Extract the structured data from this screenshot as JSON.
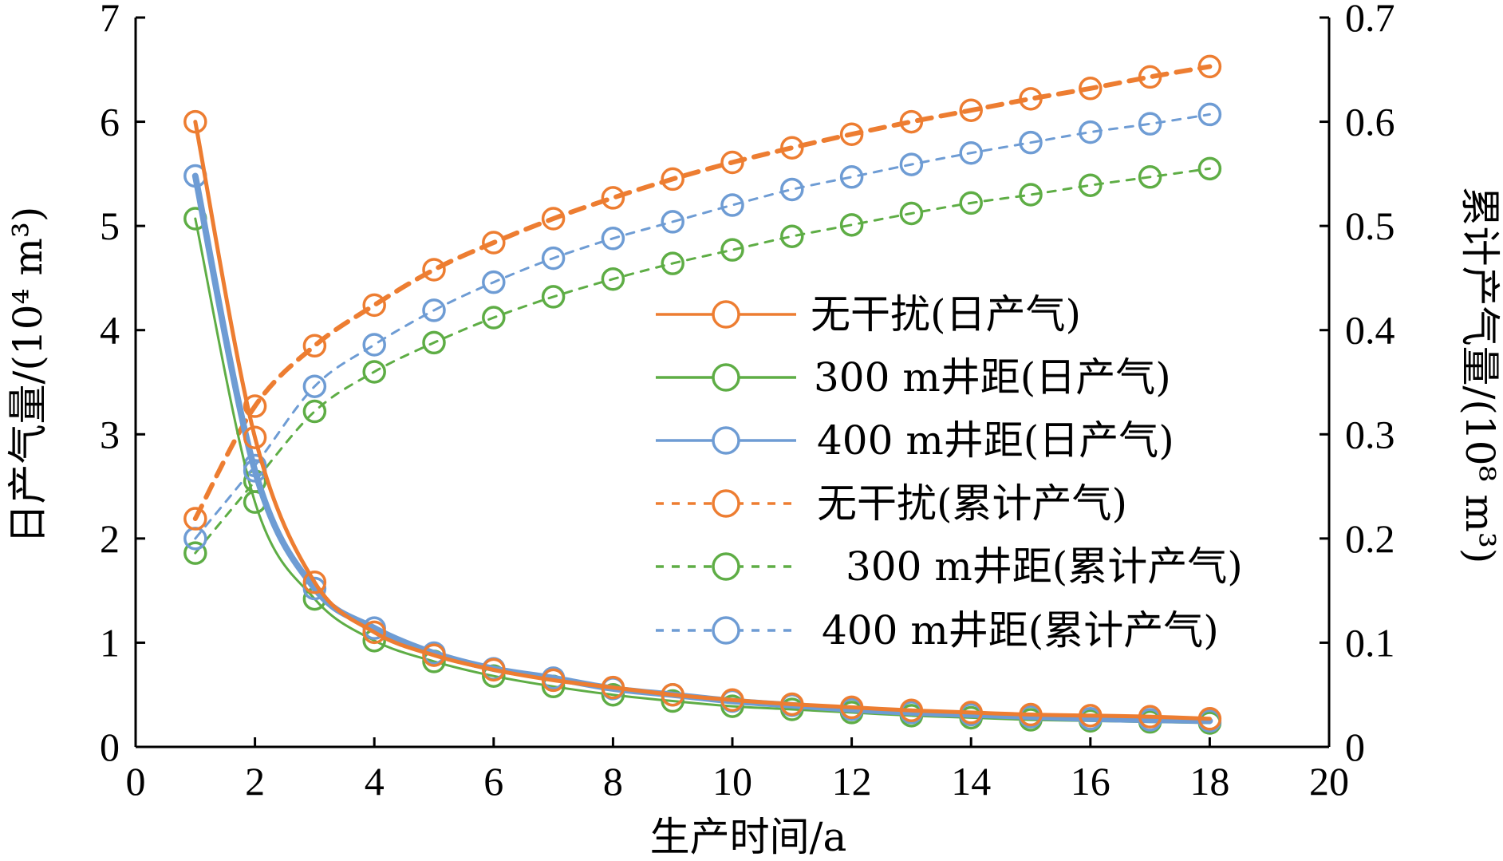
{
  "chart_data": {
    "type": "line",
    "xlabel": "生产时间/a",
    "ylabel_left": "日产气量/(10⁴ m³)",
    "ylabel_right": "累计产气量/(10⁸ m³)",
    "xlim": [
      0,
      20
    ],
    "ylim_left": [
      0,
      7
    ],
    "ylim_right": [
      0,
      0.7
    ],
    "x_ticks": [
      "0",
      "2",
      "4",
      "6",
      "8",
      "10",
      "12",
      "14",
      "16",
      "18",
      "20"
    ],
    "y_left_ticks": [
      "0",
      "1",
      "2",
      "3",
      "4",
      "5",
      "6",
      "7"
    ],
    "y_right_ticks": [
      "0",
      "0.1",
      "0.2",
      "0.3",
      "0.4",
      "0.5",
      "0.6",
      "0.7"
    ],
    "grid": false,
    "legend_position": "center-right",
    "x": [
      1,
      2,
      3,
      4,
      5,
      6,
      7,
      8,
      9,
      10,
      11,
      12,
      13,
      14,
      15,
      16,
      17,
      18
    ],
    "series": [
      {
        "name": "无干扰(日产气)",
        "axis": "left",
        "style": "solid",
        "color": "#ED7D31",
        "values": [
          6.0,
          2.97,
          1.58,
          1.1,
          0.88,
          0.74,
          0.64,
          0.57,
          0.5,
          0.45,
          0.41,
          0.38,
          0.35,
          0.33,
          0.31,
          0.3,
          0.29,
          0.27
        ]
      },
      {
        "name": "300 m井距(日产气)",
        "axis": "left",
        "style": "solid",
        "color": "#5EAD45",
        "values": [
          5.07,
          2.35,
          1.42,
          1.02,
          0.82,
          0.68,
          0.58,
          0.5,
          0.44,
          0.39,
          0.36,
          0.33,
          0.3,
          0.28,
          0.26,
          0.25,
          0.24,
          0.23
        ]
      },
      {
        "name": "400 m井距(日产气)",
        "axis": "left",
        "style": "solid",
        "color": "#6E9CD4",
        "values": [
          5.48,
          2.65,
          1.52,
          1.14,
          0.9,
          0.75,
          0.66,
          0.56,
          0.5,
          0.44,
          0.4,
          0.36,
          0.33,
          0.31,
          0.29,
          0.27,
          0.26,
          0.25
        ]
      },
      {
        "name": "无干扰(累计产气)",
        "axis": "right",
        "style": "dashed",
        "color": "#ED7D31",
        "values": [
          0.219,
          0.327,
          0.385,
          0.424,
          0.458,
          0.484,
          0.507,
          0.527,
          0.545,
          0.561,
          0.575,
          0.588,
          0.6,
          0.611,
          0.622,
          0.632,
          0.643,
          0.653
        ]
      },
      {
        "name": "300 m井距(累计产气)",
        "axis": "right",
        "style": "dashed",
        "color": "#5EAD45",
        "values": [
          0.186,
          0.255,
          0.322,
          0.36,
          0.388,
          0.412,
          0.432,
          0.449,
          0.464,
          0.477,
          0.49,
          0.501,
          0.512,
          0.522,
          0.53,
          0.539,
          0.547,
          0.555
        ]
      },
      {
        "name": "400 m井距(累计产气)",
        "axis": "right",
        "style": "dashed",
        "color": "#6E9CD4",
        "values": [
          0.2,
          0.27,
          0.346,
          0.386,
          0.419,
          0.446,
          0.469,
          0.488,
          0.504,
          0.52,
          0.535,
          0.547,
          0.559,
          0.57,
          0.58,
          0.59,
          0.598,
          0.607
        ]
      }
    ]
  }
}
